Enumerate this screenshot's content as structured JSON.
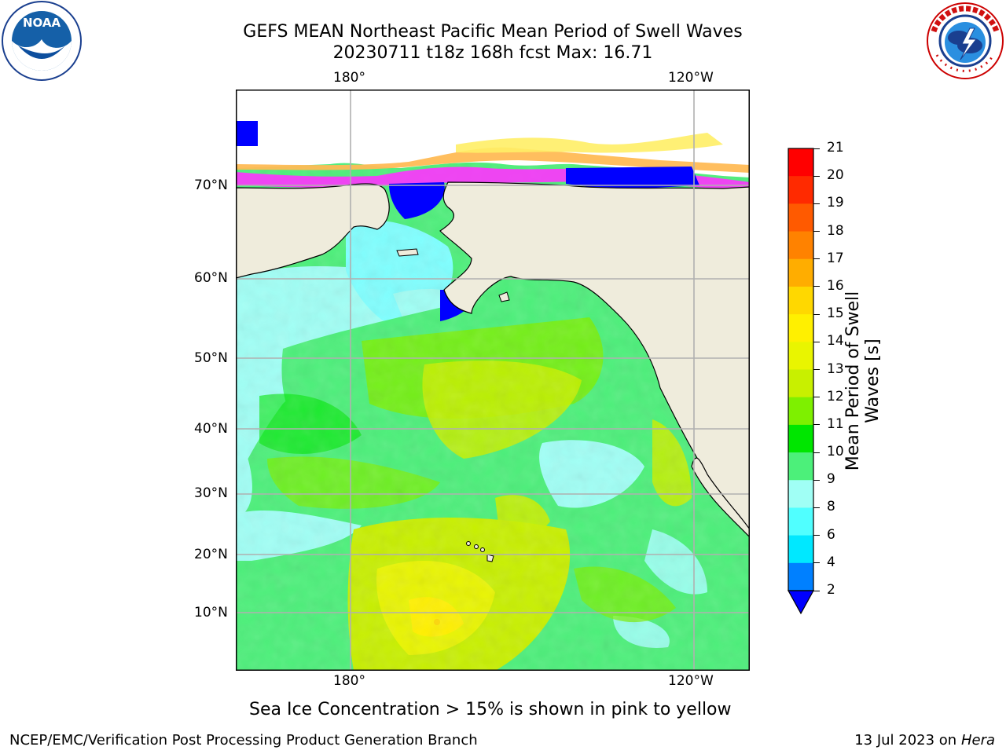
{
  "header": {
    "title_line1": "GEFS MEAN Northeast Pacific Mean Period of Swell Waves",
    "title_line2": "20230711 t18z 168h fcst   Max: 16.71"
  },
  "logos": {
    "left": {
      "name": "NOAA",
      "text": "NOAA",
      "ring_text": "NATIONAL OCEANIC AND ATMOSPHERIC ADMINISTRATION · U.S. DEPARTMENT OF COMMERCE"
    },
    "right": {
      "name": "National Weather Service",
      "ring_text": "NATIONAL WEATHER SERVICE"
    }
  },
  "map": {
    "lon_labels_top": [
      "180°",
      "120°W"
    ],
    "lon_labels_bottom": [
      "180°",
      "120°W"
    ],
    "lat_labels": [
      "70°N",
      "60°N",
      "50°N",
      "40°N",
      "30°N",
      "20°N",
      "10°N"
    ],
    "colors": {
      "land": "#efecdc",
      "gridline": "#b0b0b0",
      "ice_blue": "#0000ff",
      "ice_magenta": "#ff33ff",
      "ice_orange": "#ffbb55",
      "ice_yellow": "#ffee66"
    }
  },
  "colorbar": {
    "label": "Mean Period of Swell Waves [s]",
    "ticks": [
      "21",
      "20",
      "19",
      "18",
      "17",
      "16",
      "15",
      "14",
      "13",
      "12",
      "11",
      "10",
      "9",
      "8",
      "6",
      "4",
      "2"
    ],
    "colors": [
      "#ff0000",
      "#ff2a00",
      "#ff5a00",
      "#ff8200",
      "#ffad00",
      "#ffd800",
      "#fff000",
      "#e9f500",
      "#c8f000",
      "#7ef000",
      "#00e600",
      "#4cf07a",
      "#a0fff5",
      "#50ffff",
      "#00e8ff",
      "#0080ff"
    ],
    "under_color": "#0000ff"
  },
  "caption": "Sea Ice Concentration > 15% is shown in pink to yellow",
  "footer": {
    "left": "NCEP/EMC/Verification Post Processing Product Generation Branch",
    "right_date": "13 Jul 2023 on ",
    "right_host": "Hera"
  }
}
